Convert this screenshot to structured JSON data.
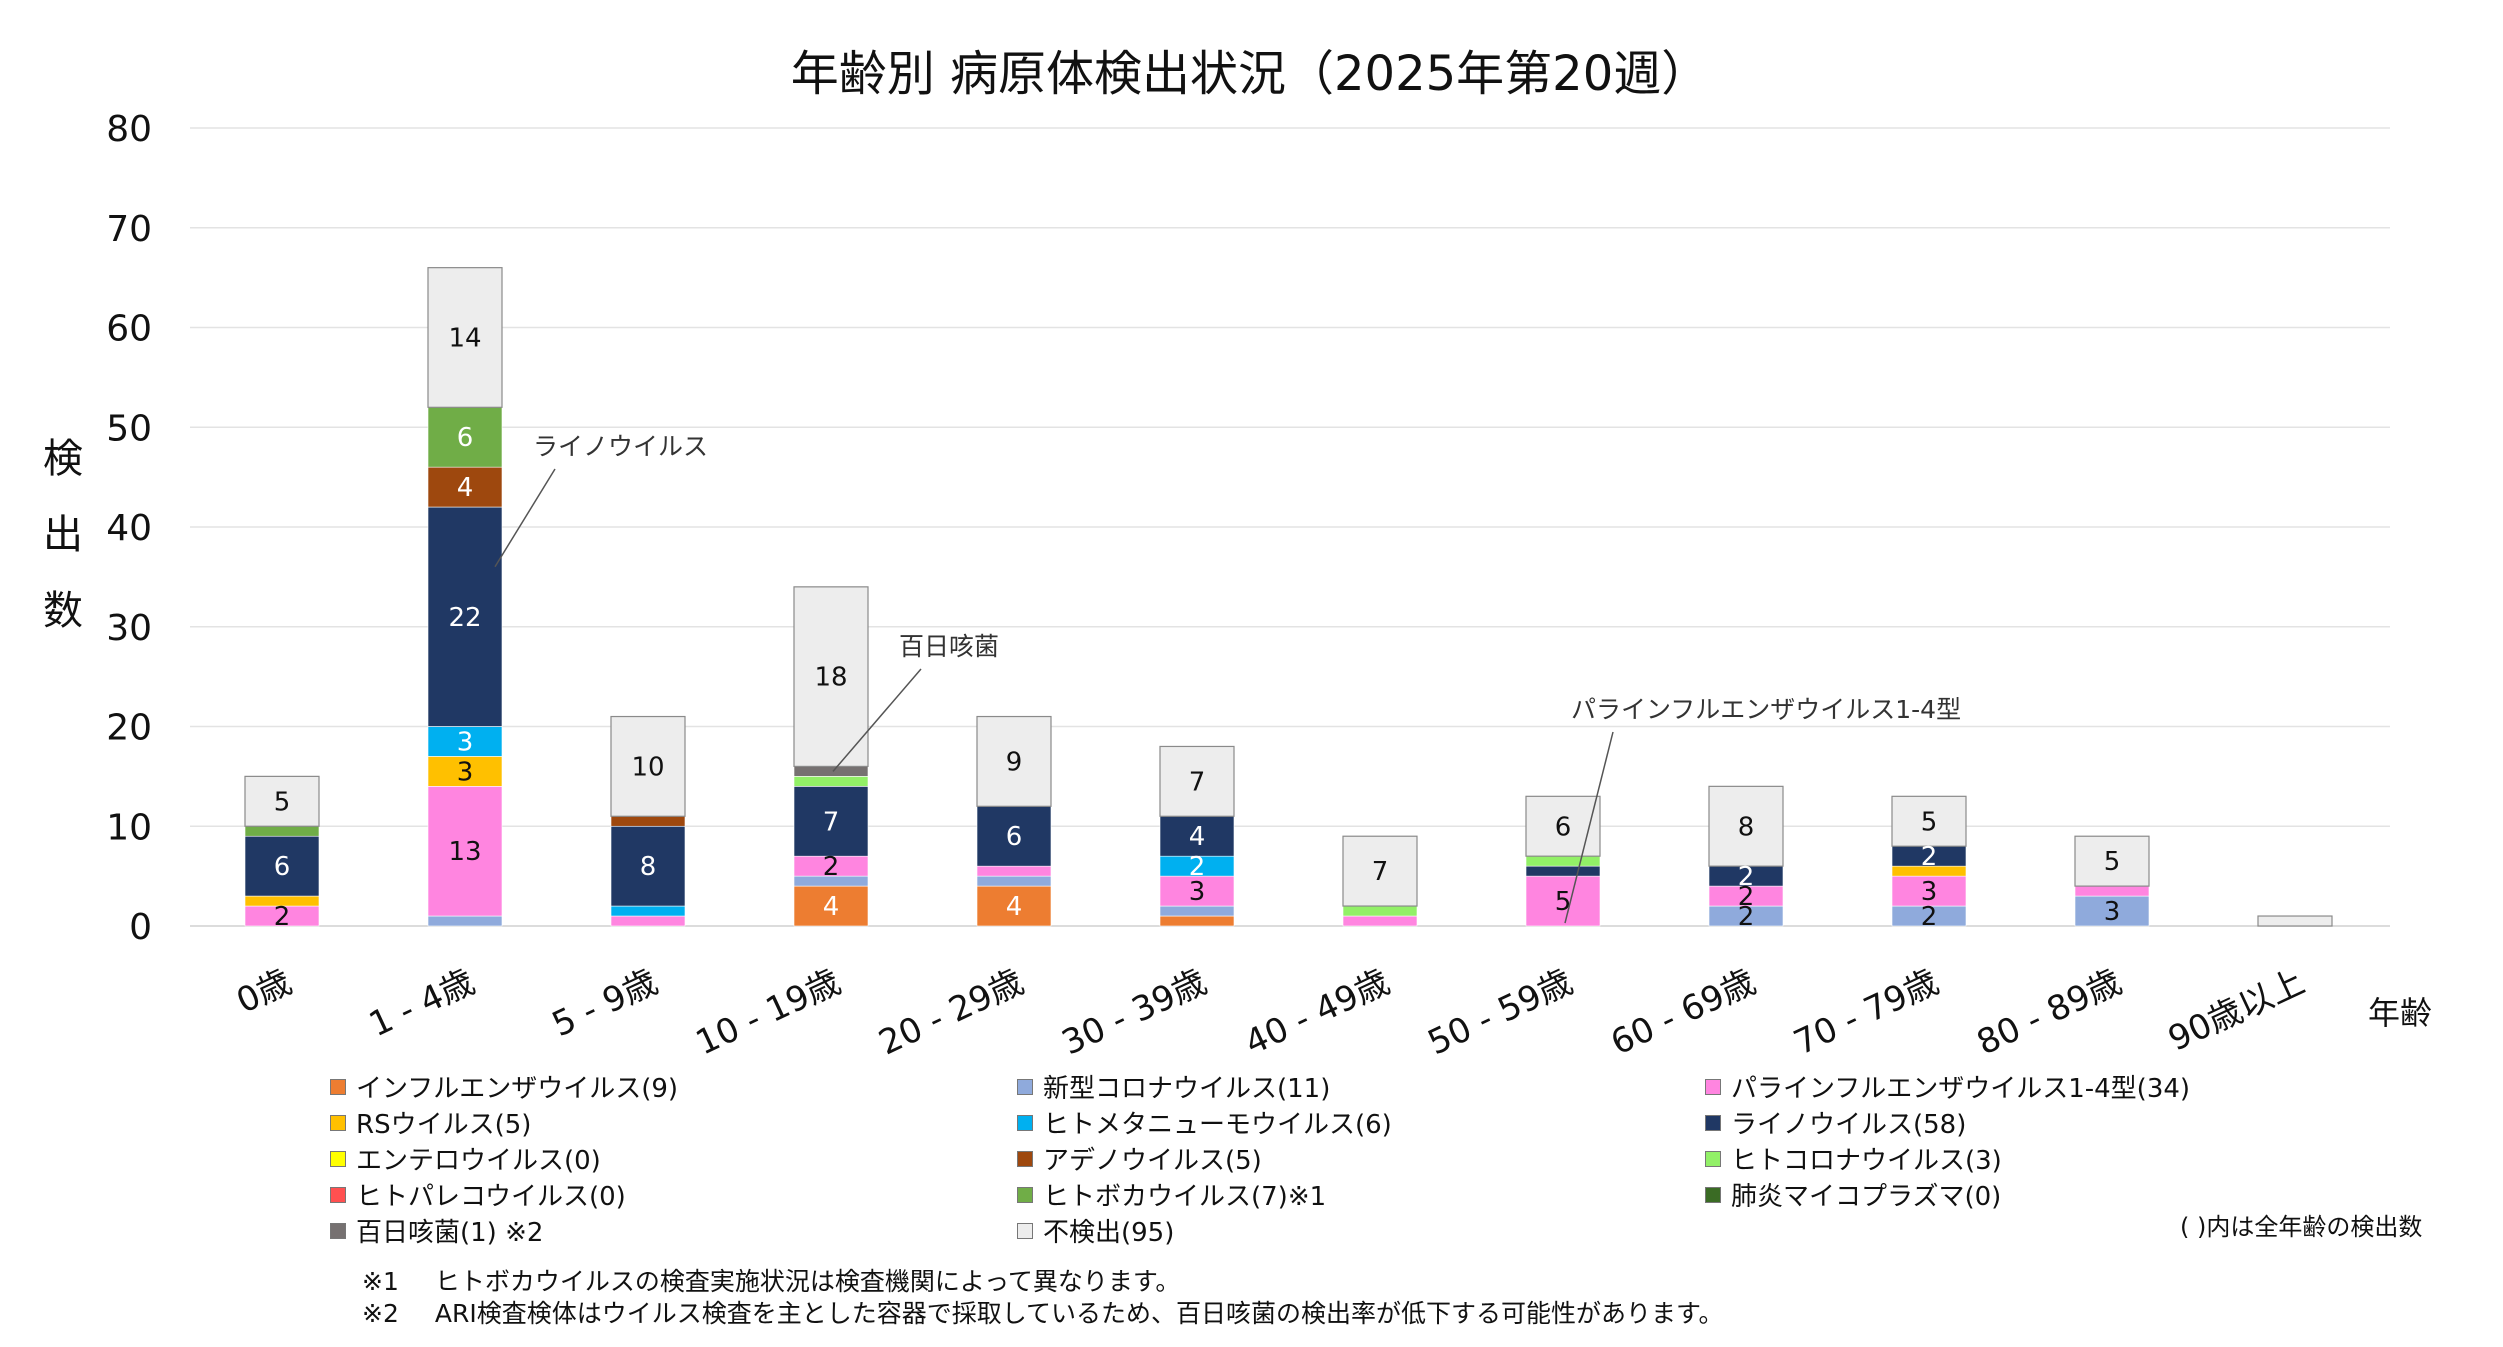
{
  "chart_data": {
    "type": "bar",
    "stacked": true,
    "title": "年齢別 病原体検出状況（2025年第20週）",
    "ylabel": "検出数",
    "xlabel": "年齢",
    "ylim": [
      0,
      80
    ],
    "yticks": [
      0,
      10,
      20,
      30,
      40,
      50,
      60,
      70,
      80
    ],
    "grid": true,
    "legend_position": "bottom",
    "categories": [
      "0歳",
      "1 - 4歳",
      "5 - 9歳",
      "10 - 19歳",
      "20 - 29歳",
      "30 - 39歳",
      "40 - 49歳",
      "50 - 59歳",
      "60 - 69歳",
      "70 - 79歳",
      "80 - 89歳",
      "90歳以上"
    ],
    "series": [
      {
        "name": "インフルエンザウイルス(9)",
        "color": "#ED7D31",
        "values": [
          0,
          0,
          0,
          4,
          4,
          1,
          0,
          0,
          0,
          0,
          0,
          0
        ]
      },
      {
        "name": "新型コロナウイルス(11)",
        "color": "#8FAADC",
        "values": [
          0,
          1,
          0,
          1,
          1,
          1,
          0,
          0,
          2,
          2,
          3,
          0
        ]
      },
      {
        "name": "パラインフルエンザウイルス1-4型(34)",
        "color": "#FF85E0",
        "values": [
          2,
          13,
          1,
          2,
          1,
          3,
          1,
          5,
          2,
          3,
          1,
          0
        ]
      },
      {
        "name": "RSウイルス(5)",
        "color": "#FFC000",
        "values": [
          1,
          3,
          0,
          0,
          0,
          0,
          0,
          0,
          0,
          1,
          0,
          0
        ]
      },
      {
        "name": "ヒトメタニューモウイルス(6)",
        "color": "#00B0F0",
        "values": [
          0,
          3,
          1,
          0,
          0,
          2,
          0,
          0,
          0,
          0,
          0,
          0
        ]
      },
      {
        "name": "ライノウイルス(58)",
        "color": "#203864",
        "values": [
          6,
          22,
          8,
          7,
          6,
          4,
          0,
          1,
          2,
          2,
          0,
          0
        ]
      },
      {
        "name": "エンテロウイルス(0)",
        "color": "#FFFF00",
        "values": [
          0,
          0,
          0,
          0,
          0,
          0,
          0,
          0,
          0,
          0,
          0,
          0
        ]
      },
      {
        "name": "アデノウイルス(5)",
        "color": "#9E480E",
        "values": [
          0,
          4,
          1,
          0,
          0,
          0,
          0,
          0,
          0,
          0,
          0,
          0
        ]
      },
      {
        "name": "ヒトコロナウイルス(3)",
        "color": "#92F067",
        "values": [
          0,
          0,
          0,
          1,
          0,
          0,
          1,
          1,
          0,
          0,
          0,
          0
        ]
      },
      {
        "name": "ヒトパレコウイルス(0)",
        "color": "#FF5050",
        "values": [
          0,
          0,
          0,
          0,
          0,
          0,
          0,
          0,
          0,
          0,
          0,
          0
        ]
      },
      {
        "name": "ヒトボカウイルス(7)※1",
        "color": "#70AD47",
        "values": [
          1,
          6,
          0,
          0,
          0,
          0,
          0,
          0,
          0,
          0,
          0,
          0
        ]
      },
      {
        "name": "肺炎マイコプラズマ(0)",
        "color": "#3A6B24",
        "values": [
          0,
          0,
          0,
          0,
          0,
          0,
          0,
          0,
          0,
          0,
          0,
          0
        ]
      },
      {
        "name": "百日咳菌(1) ※2",
        "color": "#767171",
        "values": [
          0,
          0,
          0,
          1,
          0,
          0,
          0,
          0,
          0,
          0,
          0,
          0
        ]
      },
      {
        "name": "不検出(95)",
        "color": "#EDEDED",
        "values": [
          5,
          14,
          10,
          18,
          9,
          7,
          7,
          6,
          8,
          5,
          5,
          1
        ]
      }
    ],
    "data_labels": [
      {
        "category": 0,
        "series": 2,
        "text": "2"
      },
      {
        "category": 0,
        "series": 5,
        "text": "6"
      },
      {
        "category": 0,
        "series": 13,
        "text": "5"
      },
      {
        "category": 1,
        "series": 2,
        "text": "13"
      },
      {
        "category": 1,
        "series": 3,
        "text": "3"
      },
      {
        "category": 1,
        "series": 4,
        "text": "3"
      },
      {
        "category": 1,
        "series": 5,
        "text": "22"
      },
      {
        "category": 1,
        "series": 7,
        "text": "4"
      },
      {
        "category": 1,
        "series": 10,
        "text": "6"
      },
      {
        "category": 1,
        "series": 13,
        "text": "14"
      },
      {
        "category": 2,
        "series": 5,
        "text": "8"
      },
      {
        "category": 2,
        "series": 13,
        "text": "10"
      },
      {
        "category": 3,
        "series": 0,
        "text": "4"
      },
      {
        "category": 3,
        "series": 2,
        "text": "2"
      },
      {
        "category": 3,
        "series": 5,
        "text": "7"
      },
      {
        "category": 3,
        "series": 13,
        "text": "18"
      },
      {
        "category": 4,
        "series": 0,
        "text": "4"
      },
      {
        "category": 4,
        "series": 5,
        "text": "6"
      },
      {
        "category": 4,
        "series": 13,
        "text": "9"
      },
      {
        "category": 5,
        "series": 2,
        "text": "3"
      },
      {
        "category": 5,
        "series": 4,
        "text": "2"
      },
      {
        "category": 5,
        "series": 5,
        "text": "4"
      },
      {
        "category": 5,
        "series": 13,
        "text": "7"
      },
      {
        "category": 6,
        "series": 13,
        "text": "7"
      },
      {
        "category": 7,
        "series": 2,
        "text": "5"
      },
      {
        "category": 7,
        "series": 13,
        "text": "6"
      },
      {
        "category": 8,
        "series": 1,
        "text": "2"
      },
      {
        "category": 8,
        "series": 2,
        "text": "2"
      },
      {
        "category": 8,
        "series": 5,
        "text": "2"
      },
      {
        "category": 8,
        "series": 13,
        "text": "8"
      },
      {
        "category": 9,
        "series": 1,
        "text": "2"
      },
      {
        "category": 9,
        "series": 2,
        "text": "3"
      },
      {
        "category": 9,
        "series": 5,
        "text": "2"
      },
      {
        "category": 9,
        "series": 13,
        "text": "5"
      },
      {
        "category": 10,
        "series": 1,
        "text": "3"
      },
      {
        "category": 10,
        "series": 13,
        "text": "5"
      }
    ],
    "annotations": [
      {
        "text": "ライノウイルス",
        "category": 1,
        "series": 5
      },
      {
        "text": "百日咳菌",
        "category": 3,
        "series": 12
      },
      {
        "text": "パラインフルエンザウイルス1-4型",
        "category": 7,
        "series": 2
      }
    ],
    "legend_note": "( )内は全年齢の検出数"
  },
  "notes": [
    {
      "mark": "※1",
      "text": "ヒトボカウイルスの検査実施状況は検査機関によって異なります。"
    },
    {
      "mark": "※2",
      "text": "ARI検査検体はウイルス検査を主とした容器で採取しているため、百日咳菌の検出率が低下する可能性があります。"
    }
  ]
}
